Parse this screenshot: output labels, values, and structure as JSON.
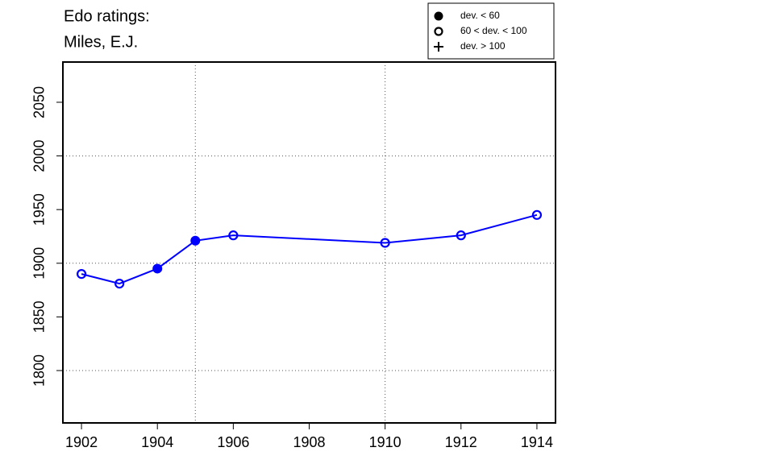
{
  "chart_data": {
    "type": "line",
    "title": "Edo ratings:",
    "subtitle": "Miles, E.J.",
    "x": [
      1902,
      1903,
      1904,
      1905,
      1906,
      1910,
      1912,
      1914
    ],
    "values": [
      1890,
      1881,
      1895,
      1921,
      1926,
      1919,
      1926,
      1945
    ],
    "groups": [
      1,
      1,
      0,
      0,
      1,
      1,
      1,
      1
    ],
    "color": "#0000ff",
    "xlim": [
      1901.51,
      1914.49
    ],
    "xticks": [
      1902,
      1904,
      1906,
      1908,
      1910,
      1912,
      1914
    ],
    "ylim": [
      1751.2,
      2087.5
    ],
    "yticks": [
      1800,
      1850,
      1900,
      1950,
      2000,
      2050
    ],
    "vgrid": [
      1905,
      1910
    ],
    "hgrid": [
      1800,
      1900,
      2000
    ],
    "legend": [
      {
        "label": "dev. < 60",
        "symbol": "filled"
      },
      {
        "label": "60 < dev. < 100",
        "symbol": "open"
      },
      {
        "label": "dev. > 100",
        "symbol": "plus"
      }
    ],
    "legend_position": "top-right"
  }
}
